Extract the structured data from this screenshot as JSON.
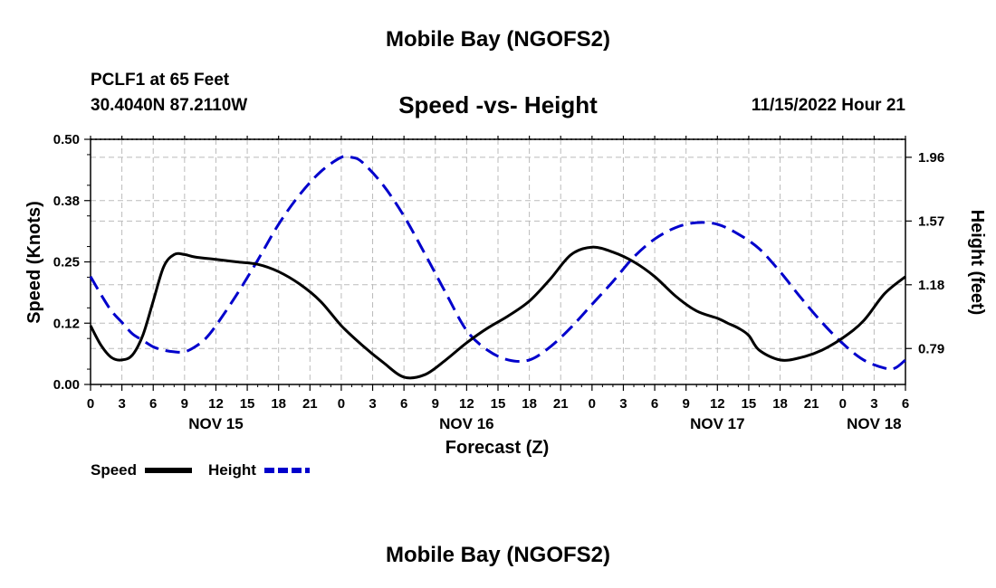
{
  "title_top": "Mobile Bay (NGOFS2)",
  "title_bottom": "Mobile Bay (NGOFS2)",
  "station": {
    "line1": "PCLF1 at 65 Feet",
    "line2": "30.4040N  87.2110W"
  },
  "datetime": "11/15/2022 Hour 21",
  "chart_data": {
    "type": "line",
    "title": "Speed -vs- Height",
    "xlabel": "Forecast (Z)",
    "ylabel_left": "Speed (Knots)",
    "ylabel_right": "Height (feet)",
    "x_range_hours": [
      0,
      78
    ],
    "x_tick_labels": [
      "0",
      "3",
      "6",
      "9",
      "12",
      "15",
      "18",
      "21",
      "0",
      "3",
      "6",
      "9",
      "12",
      "15",
      "18",
      "21",
      "0",
      "3",
      "6",
      "9",
      "12",
      "15",
      "18",
      "21",
      "0",
      "3",
      "6"
    ],
    "day_labels": [
      {
        "label": "NOV 15",
        "hour": 12
      },
      {
        "label": "NOV 16",
        "hour": 36
      },
      {
        "label": "NOV 17",
        "hour": 60
      },
      {
        "label": "NOV 18",
        "hour": 75
      }
    ],
    "y_left": {
      "range": [
        0,
        0.5
      ],
      "tick_labels": [
        "0.00",
        "0.12",
        "0.25",
        "0.38",
        "0.50"
      ]
    },
    "y_right": {
      "range": [
        0.57,
        2.07
      ],
      "ticks": [
        0.79,
        1.18,
        1.57,
        1.96
      ],
      "tick_labels": [
        "0.79",
        "1.18",
        "1.57",
        "1.96"
      ]
    },
    "grid": true,
    "legend_position": "bottom-left",
    "series": [
      {
        "name": "Speed",
        "axis": "left",
        "color": "#000000",
        "style": "solid",
        "x": [
          0,
          1,
          2,
          3,
          4,
          5,
          6,
          7,
          8,
          9,
          10,
          12,
          14,
          16,
          18,
          20,
          22,
          24,
          26,
          28,
          30,
          32,
          34,
          36,
          38,
          40,
          42,
          44,
          46,
          48,
          50,
          52,
          54,
          56,
          58,
          60,
          61,
          62,
          63,
          64,
          66,
          68,
          70,
          72,
          74,
          76,
          78
        ],
        "y": [
          0.12,
          0.08,
          0.055,
          0.05,
          0.06,
          0.1,
          0.17,
          0.24,
          0.265,
          0.265,
          0.26,
          0.255,
          0.25,
          0.245,
          0.23,
          0.205,
          0.17,
          0.12,
          0.08,
          0.045,
          0.015,
          0.02,
          0.05,
          0.085,
          0.115,
          0.14,
          0.17,
          0.215,
          0.265,
          0.28,
          0.27,
          0.25,
          0.22,
          0.18,
          0.15,
          0.135,
          0.125,
          0.115,
          0.1,
          0.07,
          0.05,
          0.055,
          0.07,
          0.095,
          0.13,
          0.185,
          0.22
        ]
      },
      {
        "name": "Height",
        "axis": "right",
        "color": "#0000cc",
        "style": "dashed",
        "x": [
          0,
          1,
          2,
          3,
          4,
          5,
          6,
          7,
          8,
          9,
          10,
          11,
          12,
          14,
          16,
          18,
          20,
          22,
          24,
          25,
          26,
          28,
          30,
          32,
          34,
          36,
          38,
          40,
          42,
          44,
          46,
          48,
          50,
          52,
          54,
          56,
          58,
          60,
          62,
          64,
          66,
          68,
          70,
          72,
          74,
          76,
          77,
          78
        ],
        "y": [
          1.23,
          1.12,
          1.02,
          0.95,
          0.88,
          0.84,
          0.8,
          0.78,
          0.77,
          0.77,
          0.8,
          0.85,
          0.93,
          1.12,
          1.33,
          1.55,
          1.73,
          1.87,
          1.96,
          1.96,
          1.93,
          1.79,
          1.6,
          1.37,
          1.13,
          0.9,
          0.78,
          0.72,
          0.72,
          0.8,
          0.92,
          1.06,
          1.2,
          1.35,
          1.46,
          1.53,
          1.56,
          1.55,
          1.49,
          1.4,
          1.26,
          1.1,
          0.95,
          0.82,
          0.72,
          0.67,
          0.67,
          0.72
        ]
      }
    ]
  }
}
